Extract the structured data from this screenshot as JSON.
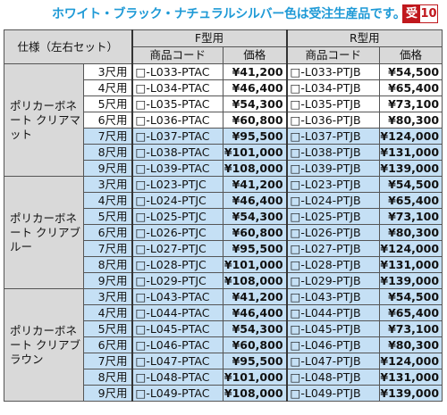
{
  "note": "ホワイト・ブラック・ナチュラルシルバー色は受注生産品です。",
  "badge": {
    "kanji": "受",
    "number": "10"
  },
  "header": {
    "spec": "仕様（左右セット）",
    "f_type": "F型用",
    "r_type": "R型用",
    "code": "商品コード",
    "price": "価格"
  },
  "groups": [
    {
      "name": "ポリカーボネート\nクリアマット",
      "rows": [
        {
          "size": "3尺用",
          "f_code": "□-L033-PTAC",
          "f_price": "¥41,200",
          "r_code": "□-L033-PTJB",
          "r_price": "¥54,500",
          "highlight": false
        },
        {
          "size": "4尺用",
          "f_code": "□-L034-PTAC",
          "f_price": "¥46,400",
          "r_code": "□-L034-PTJB",
          "r_price": "¥65,400",
          "highlight": false
        },
        {
          "size": "5尺用",
          "f_code": "□-L035-PTAC",
          "f_price": "¥54,300",
          "r_code": "□-L035-PTJB",
          "r_price": "¥73,100",
          "highlight": false
        },
        {
          "size": "6尺用",
          "f_code": "□-L036-PTAC",
          "f_price": "¥60,800",
          "r_code": "□-L036-PTJB",
          "r_price": "¥80,300",
          "highlight": false
        },
        {
          "size": "7尺用",
          "f_code": "□-L037-PTAC",
          "f_price": "¥95,500",
          "r_code": "□-L037-PTJB",
          "r_price": "¥124,000",
          "highlight": true
        },
        {
          "size": "8尺用",
          "f_code": "□-L038-PTAC",
          "f_price": "¥101,000",
          "r_code": "□-L038-PTJB",
          "r_price": "¥131,000",
          "highlight": true
        },
        {
          "size": "9尺用",
          "f_code": "□-L039-PTAC",
          "f_price": "¥108,000",
          "r_code": "□-L039-PTJB",
          "r_price": "¥139,000",
          "highlight": true
        }
      ]
    },
    {
      "name": "ポリカーボネート\nクリアブルー",
      "rows": [
        {
          "size": "3尺用",
          "f_code": "□-L023-PTJC",
          "f_price": "¥41,200",
          "r_code": "□-L023-PTJB",
          "r_price": "¥54,500",
          "highlight": true
        },
        {
          "size": "4尺用",
          "f_code": "□-L024-PTJC",
          "f_price": "¥46,400",
          "r_code": "□-L024-PTJB",
          "r_price": "¥65,400",
          "highlight": true
        },
        {
          "size": "5尺用",
          "f_code": "□-L025-PTJC",
          "f_price": "¥54,300",
          "r_code": "□-L025-PTJB",
          "r_price": "¥73,100",
          "highlight": true
        },
        {
          "size": "6尺用",
          "f_code": "□-L026-PTJC",
          "f_price": "¥60,800",
          "r_code": "□-L026-PTJB",
          "r_price": "¥80,300",
          "highlight": true
        },
        {
          "size": "7尺用",
          "f_code": "□-L027-PTJC",
          "f_price": "¥95,500",
          "r_code": "□-L027-PTJB",
          "r_price": "¥124,000",
          "highlight": true
        },
        {
          "size": "8尺用",
          "f_code": "□-L028-PTJC",
          "f_price": "¥101,000",
          "r_code": "□-L028-PTJB",
          "r_price": "¥131,000",
          "highlight": true
        },
        {
          "size": "9尺用",
          "f_code": "□-L029-PTJC",
          "f_price": "¥108,000",
          "r_code": "□-L029-PTJB",
          "r_price": "¥139,000",
          "highlight": true
        }
      ]
    },
    {
      "name": "ポリカーボネート\nクリアブラウン",
      "rows": [
        {
          "size": "3尺用",
          "f_code": "□-L043-PTAC",
          "f_price": "¥41,200",
          "r_code": "□-L043-PTJB",
          "r_price": "¥54,500",
          "highlight": true
        },
        {
          "size": "4尺用",
          "f_code": "□-L044-PTAC",
          "f_price": "¥46,400",
          "r_code": "□-L044-PTJB",
          "r_price": "¥65,400",
          "highlight": true
        },
        {
          "size": "5尺用",
          "f_code": "□-L045-PTAC",
          "f_price": "¥54,300",
          "r_code": "□-L045-PTJB",
          "r_price": "¥73,100",
          "highlight": true
        },
        {
          "size": "6尺用",
          "f_code": "□-L046-PTAC",
          "f_price": "¥60,800",
          "r_code": "□-L046-PTJB",
          "r_price": "¥80,300",
          "highlight": true
        },
        {
          "size": "7尺用",
          "f_code": "□-L047-PTAC",
          "f_price": "¥95,500",
          "r_code": "□-L047-PTJB",
          "r_price": "¥124,000",
          "highlight": true
        },
        {
          "size": "8尺用",
          "f_code": "□-L048-PTAC",
          "f_price": "¥101,000",
          "r_code": "□-L048-PTJB",
          "r_price": "¥131,000",
          "highlight": true
        },
        {
          "size": "9尺用",
          "f_code": "□-L049-PTAC",
          "f_price": "¥108,000",
          "r_code": "□-L049-PTJB",
          "r_price": "¥139,000",
          "highlight": true
        }
      ]
    }
  ],
  "colors": {
    "highlight_blue": "#c5e0f5",
    "header_gray": "#d9d9d9",
    "note_blue": "#1f9ad6",
    "badge_red": "#c0181d"
  }
}
